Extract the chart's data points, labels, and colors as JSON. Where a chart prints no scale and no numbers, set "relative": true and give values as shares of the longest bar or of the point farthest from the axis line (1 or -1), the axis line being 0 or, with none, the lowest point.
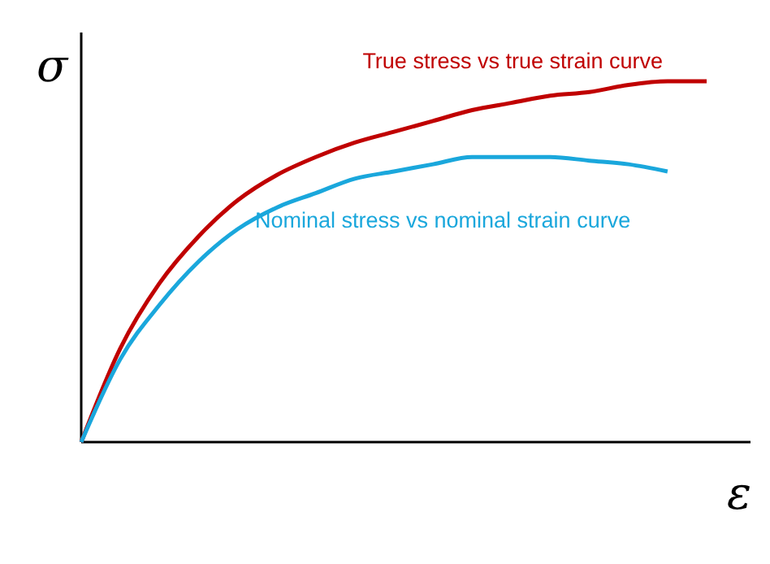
{
  "chart_data": {
    "type": "line",
    "relative": true,
    "xlabel": "ε",
    "ylabel": "σ",
    "categories": [
      null,
      null,
      null,
      null,
      null,
      null,
      null,
      null,
      null,
      null,
      null,
      null,
      null,
      null,
      null,
      null,
      null
    ],
    "series": [
      {
        "name": "True stress vs true strain curve",
        "color": "#c00000",
        "values": [
          0,
          0.26,
          0.44,
          0.57,
          0.67,
          0.74,
          0.79,
          0.83,
          0.86,
          0.89,
          0.92,
          0.94,
          0.96,
          0.97,
          0.99,
          1.0,
          1.0
        ]
      },
      {
        "name": "Nominal stress vs nominal strain curve",
        "color": "#1aa7dc",
        "values": [
          0,
          0.23,
          0.38,
          0.5,
          0.59,
          0.65,
          0.69,
          0.73,
          0.75,
          0.77,
          0.79,
          0.79,
          0.79,
          0.78,
          0.77,
          0.75,
          null
        ]
      }
    ],
    "legend": false,
    "marker": "none",
    "line_style": "solid"
  }
}
